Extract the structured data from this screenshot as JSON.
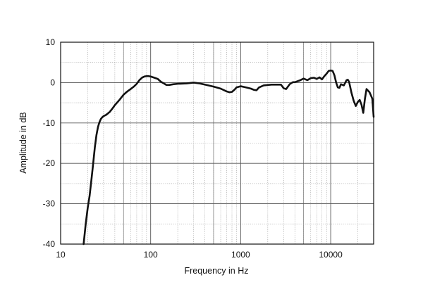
{
  "chart_data": {
    "type": "line",
    "xlabel": "Frequency in Hz",
    "ylabel": "Amplitude in dB",
    "x_scale": "log",
    "xlim": [
      10,
      30000
    ],
    "ylim": [
      -40,
      10
    ],
    "x_ticks": [
      10,
      100,
      1000,
      10000
    ],
    "x_tick_labels": [
      "10",
      "100",
      "1000",
      "10000"
    ],
    "y_ticks": [
      10,
      0,
      -10,
      -20,
      -30,
      -40
    ],
    "y_tick_labels": [
      "10",
      "0",
      "-10",
      "-20",
      "-30",
      "-40"
    ],
    "grid": true,
    "line_color": "#111111",
    "series": [
      {
        "name": "",
        "x": [
          18,
          19,
          20,
          21,
          22,
          23,
          24,
          25,
          26,
          27,
          28,
          29,
          30,
          32,
          35,
          38,
          40,
          45,
          50,
          55,
          60,
          65,
          70,
          75,
          80,
          85,
          90,
          95,
          100,
          110,
          120,
          130,
          140,
          150,
          160,
          180,
          200,
          250,
          300,
          350,
          400,
          500,
          600,
          700,
          750,
          800,
          850,
          900,
          1000,
          1100,
          1200,
          1300,
          1400,
          1500,
          1600,
          1800,
          2000,
          2200,
          2500,
          2800,
          3000,
          3200,
          3500,
          3800,
          4000,
          4500,
          5000,
          5500,
          6000,
          6500,
          7000,
          7500,
          8000,
          8500,
          9000,
          9500,
          10000,
          10500,
          11000,
          11500,
          12000,
          12500,
          13000,
          14000,
          15000,
          15500,
          16000,
          17000,
          18000,
          19000,
          20000,
          21000,
          22000,
          23000,
          24000,
          25000,
          26000,
          27000,
          28000,
          29000,
          30000
        ],
        "y": [
          -40,
          -35,
          -31,
          -28,
          -24,
          -20,
          -16,
          -13,
          -11,
          -9.8,
          -9,
          -8.6,
          -8.3,
          -8,
          -7.3,
          -6.3,
          -5.6,
          -4.3,
          -3,
          -2.2,
          -1.6,
          -1,
          -0.3,
          0.6,
          1.2,
          1.5,
          1.6,
          1.6,
          1.5,
          1.2,
          0.9,
          0.2,
          -0.2,
          -0.6,
          -0.6,
          -0.4,
          -0.3,
          -0.2,
          0,
          -0.2,
          -0.5,
          -1,
          -1.5,
          -2.2,
          -2.4,
          -2.3,
          -1.8,
          -1.2,
          -0.9,
          -1.1,
          -1.3,
          -1.5,
          -1.8,
          -1.9,
          -1.2,
          -0.7,
          -0.6,
          -0.5,
          -0.5,
          -0.5,
          -1.4,
          -1.6,
          -0.4,
          0.1,
          0.1,
          0.5,
          1,
          0.6,
          1.1,
          1.2,
          0.9,
          1.3,
          0.8,
          1.6,
          2.2,
          2.9,
          3,
          2.9,
          1.8,
          0,
          -1.2,
          -1.3,
          -0.4,
          -0.7,
          0.6,
          0.7,
          0.2,
          -2.5,
          -4.5,
          -5.8,
          -4.8,
          -4.3,
          -5.5,
          -7.5,
          -4,
          -1.6,
          -2,
          -2.4,
          -3.2,
          -4,
          -8.5
        ]
      }
    ]
  }
}
